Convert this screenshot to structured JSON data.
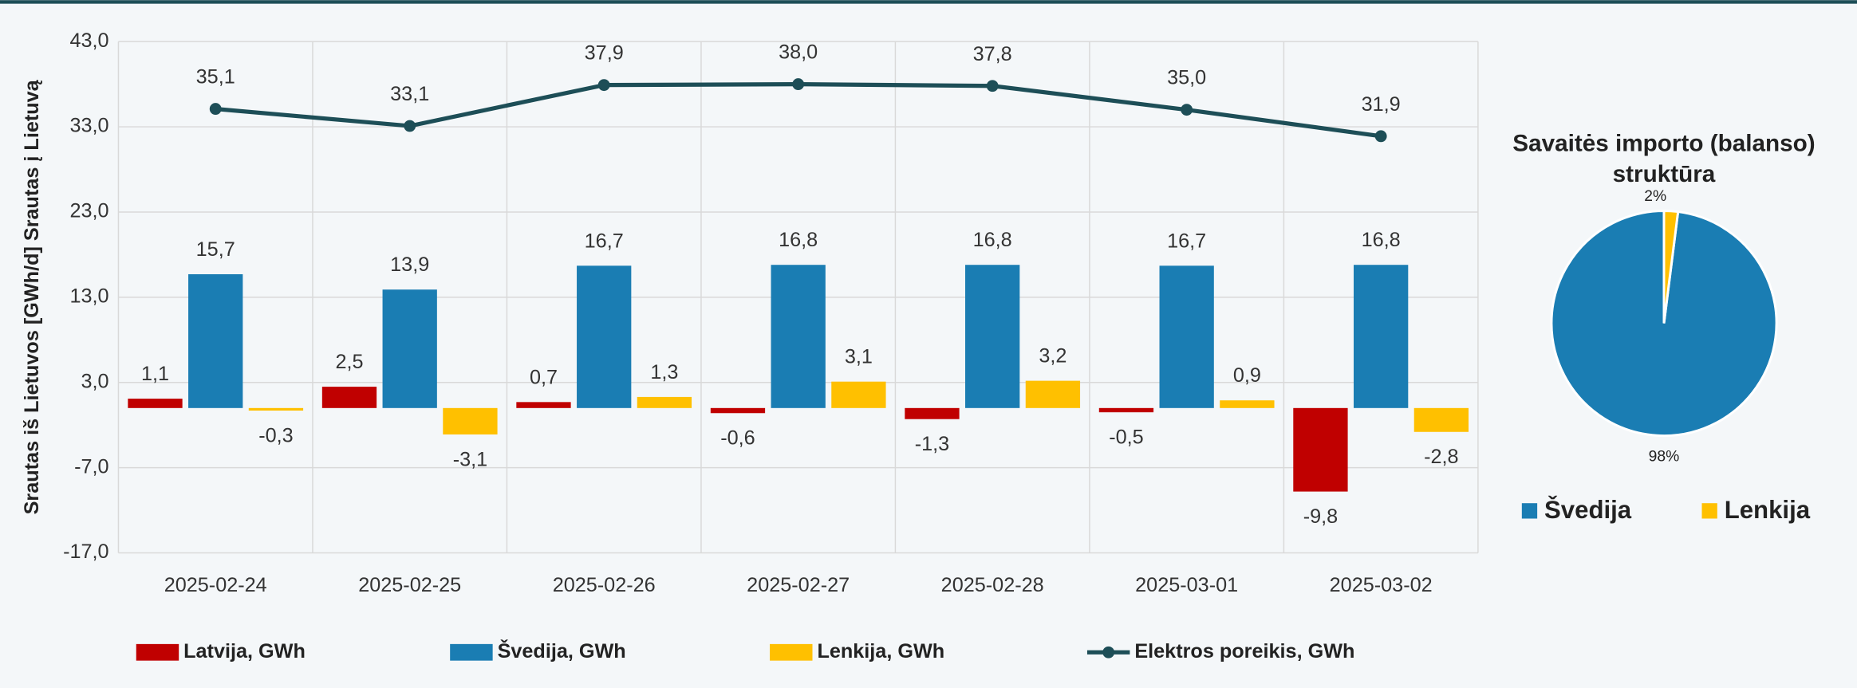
{
  "chart_data": [
    {
      "type": "bar",
      "y_label": "Srautas iš Lietuvos [GWh/d] Srautas į Lietuvą",
      "categories": [
        "2025-02-24",
        "2025-02-25",
        "2025-02-26",
        "2025-02-27",
        "2025-02-28",
        "2025-03-01",
        "2025-03-02"
      ],
      "ylim": [
        -17,
        43
      ],
      "yticks": [
        {
          "value": 43,
          "label": "43,0"
        },
        {
          "value": 33,
          "label": "33,0"
        },
        {
          "value": 23,
          "label": "23,0"
        },
        {
          "value": 13,
          "label": "13,0"
        },
        {
          "value": 3,
          "label": "3,0"
        },
        {
          "value": -7,
          "label": "-7,0"
        },
        {
          "value": -17,
          "label": "-17,0"
        }
      ],
      "grid": true,
      "legend": "bottom",
      "series": [
        {
          "name": "Latvija, GWh",
          "color": "#c00000",
          "values": [
            1.1,
            2.5,
            0.7,
            -0.6,
            -1.3,
            -0.5,
            -9.8
          ],
          "value_labels": [
            "1,1",
            "2,5",
            "0,7",
            "-0,6",
            "-1,3",
            "-0,5",
            "-9,8"
          ]
        },
        {
          "name": "Švedija, GWh",
          "color": "#1a7db3",
          "values": [
            15.7,
            13.9,
            16.7,
            16.8,
            16.8,
            16.7,
            16.8
          ],
          "value_labels": [
            "15,7",
            "13,9",
            "16,7",
            "16,8",
            "16,8",
            "16,7",
            "16,8"
          ]
        },
        {
          "name": "Lenkija, GWh",
          "color": "#ffc000",
          "values": [
            -0.3,
            -3.1,
            1.3,
            3.1,
            3.2,
            0.9,
            -2.8
          ],
          "value_labels": [
            "-0,3",
            "-3,1",
            "1,3",
            "3,1",
            "3,2",
            "0,9",
            "-2,8"
          ]
        },
        {
          "name": "Elektros poreikis, GWh",
          "type": "line",
          "color": "#1d4e57",
          "values": [
            35.1,
            33.1,
            37.9,
            38.0,
            37.8,
            35.0,
            31.9
          ],
          "value_labels": [
            "35,1",
            "33,1",
            "37,9",
            "38,0",
            "37,8",
            "35,0",
            "31,9"
          ]
        }
      ]
    },
    {
      "type": "pie",
      "title": "Savaitės importo (balanso) struktūra",
      "legend": "bottom",
      "categories": [
        "Švedija",
        "Lenkija"
      ],
      "values": [
        98,
        2
      ],
      "value_labels": [
        "98%",
        "2%"
      ],
      "colors": [
        "#1a7db3",
        "#ffc000"
      ]
    }
  ]
}
